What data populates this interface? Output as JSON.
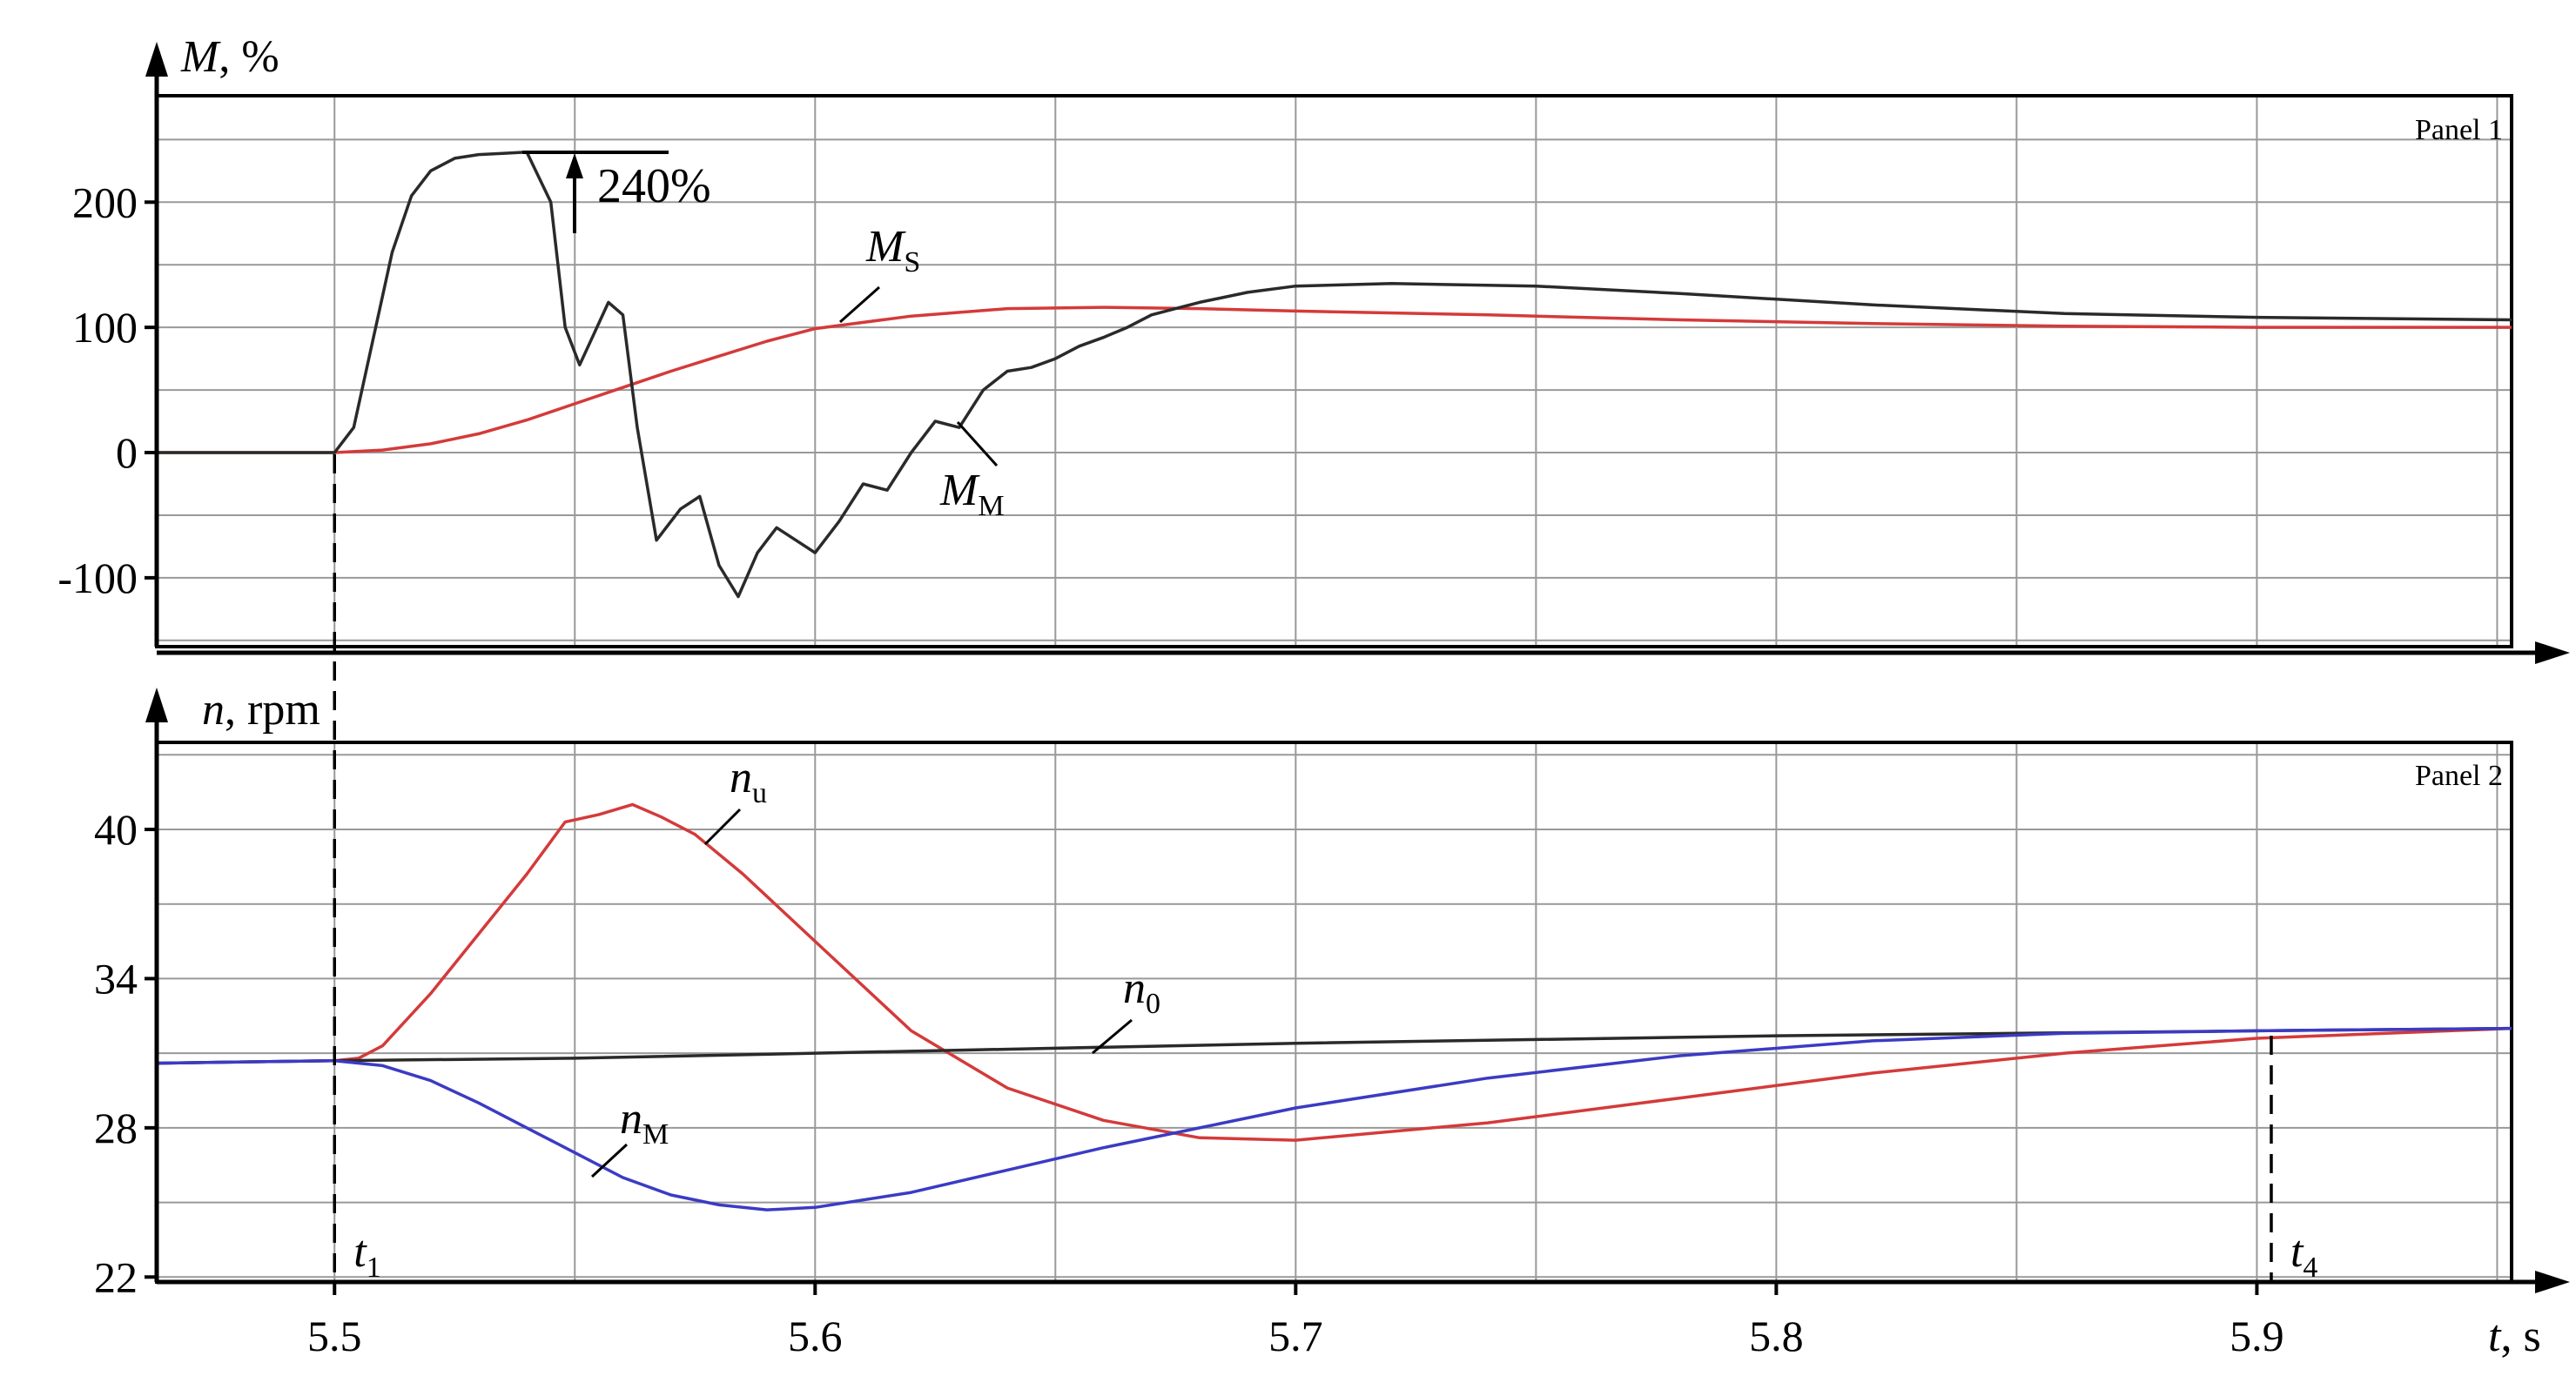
{
  "chart_data": [
    {
      "type": "line",
      "panel_label": "Panel 1",
      "ylabel": "M, %",
      "y_ticks": [
        -100,
        0,
        100,
        200
      ],
      "y_tick_labels": [
        "-100",
        "0",
        "100",
        "200"
      ],
      "ylim": [
        -155,
        285
      ],
      "xlim": [
        5.463,
        5.953
      ],
      "grid": true,
      "annotation": "240%",
      "series": [
        {
          "name": "MS",
          "color": "#d43a3a",
          "x": [
            5.463,
            5.5,
            5.51,
            5.52,
            5.53,
            5.54,
            5.55,
            5.56,
            5.57,
            5.58,
            5.59,
            5.6,
            5.62,
            5.64,
            5.66,
            5.68,
            5.7,
            5.74,
            5.78,
            5.82,
            5.86,
            5.9,
            5.953
          ],
          "y": [
            0,
            0,
            2,
            7,
            15,
            26,
            39,
            52,
            65,
            77,
            89,
            99,
            109,
            115,
            116,
            115,
            113,
            110,
            106,
            103,
            101,
            100,
            100
          ]
        },
        {
          "name": "MM",
          "color": "#2a2a2a",
          "x": [
            5.463,
            5.5,
            5.504,
            5.508,
            5.512,
            5.516,
            5.52,
            5.525,
            5.53,
            5.535,
            5.54,
            5.545,
            5.548,
            5.551,
            5.554,
            5.557,
            5.56,
            5.563,
            5.567,
            5.572,
            5.576,
            5.58,
            5.584,
            5.588,
            5.592,
            5.596,
            5.6,
            5.605,
            5.61,
            5.615,
            5.62,
            5.625,
            5.63,
            5.635,
            5.64,
            5.645,
            5.65,
            5.655,
            5.66,
            5.665,
            5.67,
            5.675,
            5.68,
            5.69,
            5.7,
            5.72,
            5.75,
            5.78,
            5.82,
            5.86,
            5.9,
            5.953
          ],
          "y": [
            0,
            0,
            20,
            90,
            160,
            205,
            225,
            235,
            238,
            239,
            240,
            200,
            100,
            70,
            95,
            120,
            110,
            20,
            -70,
            -45,
            -35,
            -90,
            -115,
            -80,
            -60,
            -70,
            -80,
            -55,
            -25,
            -30,
            0,
            25,
            20,
            50,
            65,
            68,
            75,
            85,
            92,
            100,
            110,
            115,
            120,
            128,
            133,
            135,
            133,
            127,
            118,
            111,
            108,
            106
          ]
        }
      ],
      "labels": [
        "M",
        "S",
        "M",
        "M"
      ]
    },
    {
      "type": "line",
      "panel_label": "Panel 2",
      "ylabel": "n, rpm",
      "xlabel": "t, s",
      "x_ticks": [
        5.5,
        5.6,
        5.7,
        5.8,
        5.9
      ],
      "x_tick_labels": [
        "5.5",
        "5.6",
        "5.7",
        "5.8",
        "5.9"
      ],
      "y_ticks": [
        22,
        28,
        34,
        40
      ],
      "y_tick_labels": [
        "22",
        "28",
        "34",
        "40"
      ],
      "ylim": [
        21.8,
        43.5
      ],
      "xlim": [
        5.463,
        5.953
      ],
      "grid": true,
      "markers": [
        {
          "label": "t",
          "sub": "1",
          "x": 5.5
        },
        {
          "label": "t",
          "sub": "4",
          "x": 5.903
        }
      ],
      "series": [
        {
          "name": "nu",
          "color": "#d43a3a",
          "x": [
            5.463,
            5.5,
            5.505,
            5.51,
            5.52,
            5.53,
            5.54,
            5.548,
            5.555,
            5.562,
            5.568,
            5.575,
            5.585,
            5.6,
            5.62,
            5.64,
            5.66,
            5.68,
            5.7,
            5.74,
            5.78,
            5.82,
            5.86,
            5.9,
            5.953
          ],
          "y": [
            30.6,
            30.7,
            30.8,
            31.3,
            33.4,
            35.8,
            38.2,
            40.3,
            40.6,
            41.0,
            40.5,
            39.8,
            38.2,
            35.5,
            31.9,
            29.6,
            28.3,
            27.6,
            27.5,
            28.2,
            29.2,
            30.2,
            31.0,
            31.6,
            32.0
          ]
        },
        {
          "name": "n0",
          "color": "#2a2a2a",
          "x": [
            5.463,
            5.5,
            5.55,
            5.6,
            5.65,
            5.7,
            5.75,
            5.8,
            5.85,
            5.9,
            5.953
          ],
          "y": [
            30.6,
            30.7,
            30.8,
            31.0,
            31.2,
            31.4,
            31.55,
            31.7,
            31.8,
            31.9,
            32.0
          ]
        },
        {
          "name": "nM",
          "color": "#3b3bc4",
          "x": [
            5.463,
            5.5,
            5.51,
            5.52,
            5.53,
            5.54,
            5.55,
            5.56,
            5.57,
            5.58,
            5.59,
            5.6,
            5.62,
            5.64,
            5.66,
            5.68,
            5.7,
            5.74,
            5.78,
            5.82,
            5.86,
            5.9,
            5.953
          ],
          "y": [
            30.6,
            30.7,
            30.5,
            29.9,
            29.0,
            28.0,
            27.0,
            26.0,
            25.3,
            24.9,
            24.7,
            24.8,
            25.4,
            26.3,
            27.2,
            28.0,
            28.8,
            30.0,
            30.9,
            31.5,
            31.8,
            31.9,
            32.0
          ]
        }
      ],
      "labels": [
        "n",
        "u",
        "n",
        "0",
        "n",
        "M"
      ]
    }
  ]
}
